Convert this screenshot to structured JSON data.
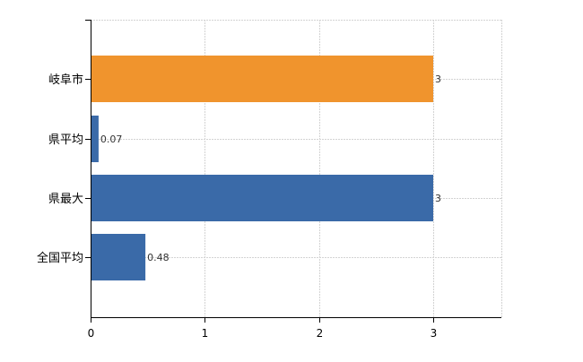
{
  "colors": {
    "highlight": "#f0942d",
    "default": "#3a6aa8",
    "grid": "#d3d3d3",
    "axis": "#000000"
  },
  "chart_data": {
    "type": "bar",
    "orientation": "horizontal",
    "title": "",
    "xlabel": "",
    "ylabel": "",
    "categories": [
      "岐阜市",
      "県平均",
      "県最大",
      "全国平均"
    ],
    "values": [
      3,
      0.07,
      3,
      0.48
    ],
    "value_labels": [
      "3",
      "0.07",
      "3",
      "0.48"
    ],
    "bar_colors": [
      "#f0942d",
      "#3a6aa8",
      "#3a6aa8",
      "#3a6aa8"
    ],
    "xlim": [
      0,
      3.6
    ],
    "xticks": [
      0,
      1,
      2,
      3
    ],
    "xtick_labels": [
      "0",
      "1",
      "2",
      "3"
    ],
    "grid": true,
    "legend": "none"
  }
}
